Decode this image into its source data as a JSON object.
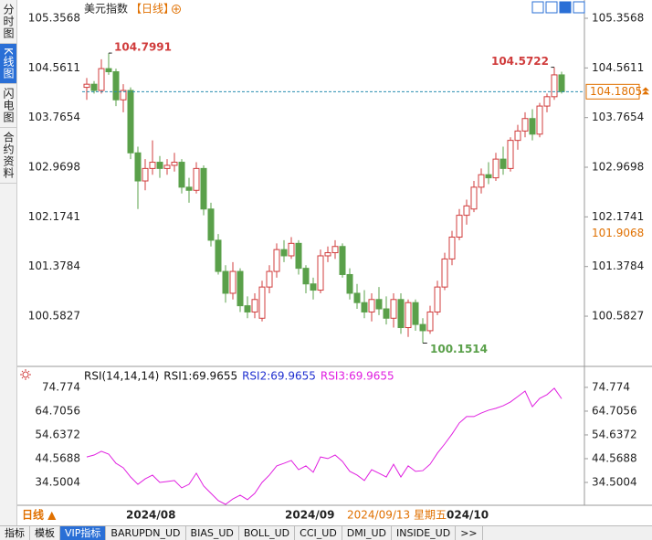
{
  "ui": {
    "sidebar": [
      "分时图",
      "K线图",
      "闪电图",
      "合约资料"
    ],
    "title": "美元指数",
    "period": "【日线】",
    "period_button": "日线 ▲",
    "x_labels": [
      "2024/08",
      "2024/09",
      "2024/09/13 星期五",
      "024/10"
    ],
    "tabs": [
      "指标",
      "模板",
      "VIP指标",
      "BARUPDN_UD",
      "BIAS_UD",
      "BOLL_UD",
      "CCI_UD",
      "DMI_UD",
      "INSIDE_UD",
      ">>"
    ]
  },
  "chart_data": [
    {
      "type": "candlestick",
      "open": [
        104.25,
        104.3,
        104.2,
        104.55,
        104.5,
        104.05,
        104.2,
        103.2,
        102.75,
        102.95,
        103.05,
        102.95,
        103.0,
        103.05,
        102.65,
        102.6,
        102.95,
        102.3,
        101.8,
        101.3,
        100.95,
        101.3,
        100.75,
        100.65,
        100.55,
        101.05,
        101.3,
        101.65,
        101.55,
        101.75,
        101.35,
        101.1,
        101.0,
        101.55,
        101.6,
        101.7,
        101.25,
        100.95,
        100.8,
        100.65,
        100.85,
        100.7,
        100.55,
        100.85,
        100.4,
        100.8,
        100.45,
        100.35,
        100.65,
        101.05,
        101.5,
        101.85,
        102.2,
        102.3,
        102.65,
        102.85,
        102.8,
        103.1,
        102.95,
        103.4,
        103.55,
        103.75,
        103.5,
        103.95,
        104.1,
        104.45
      ],
      "high": [
        104.4,
        104.35,
        104.7,
        104.7991,
        104.55,
        104.3,
        104.25,
        103.3,
        103.1,
        103.4,
        103.15,
        103.1,
        103.2,
        103.1,
        102.8,
        103.05,
        103.0,
        102.4,
        101.9,
        101.4,
        101.45,
        101.35,
        100.9,
        100.95,
        101.15,
        101.4,
        101.75,
        101.8,
        101.85,
        101.8,
        101.4,
        101.2,
        101.65,
        101.7,
        101.8,
        101.75,
        101.35,
        101.1,
        101.0,
        100.95,
        101.05,
        100.9,
        100.95,
        100.95,
        100.85,
        100.85,
        100.55,
        100.75,
        101.15,
        101.6,
        101.95,
        102.3,
        102.45,
        102.75,
        102.95,
        103.05,
        103.2,
        103.3,
        103.45,
        103.65,
        103.85,
        103.9,
        104.0,
        104.15,
        104.5722,
        104.5
      ],
      "low": [
        104.05,
        104.15,
        104.15,
        104.45,
        103.95,
        103.85,
        103.1,
        102.3,
        102.6,
        102.85,
        102.8,
        102.85,
        102.9,
        102.55,
        102.4,
        102.55,
        102.2,
        101.7,
        101.25,
        100.8,
        100.85,
        100.65,
        100.55,
        100.55,
        100.5,
        100.95,
        101.2,
        101.45,
        101.5,
        101.25,
        100.95,
        100.85,
        100.95,
        101.45,
        101.5,
        101.2,
        100.85,
        100.7,
        100.55,
        100.5,
        100.6,
        100.45,
        100.4,
        100.3,
        100.25,
        100.35,
        100.1514,
        100.3,
        100.6,
        101.0,
        101.4,
        101.8,
        102.05,
        102.25,
        102.55,
        102.7,
        102.75,
        102.85,
        102.9,
        103.25,
        103.45,
        103.4,
        103.45,
        103.85,
        104.05,
        104.15
      ],
      "close": [
        104.3,
        104.2,
        104.55,
        104.5,
        104.05,
        104.2,
        103.2,
        102.75,
        102.95,
        103.05,
        102.95,
        103.0,
        103.05,
        102.65,
        102.6,
        102.95,
        102.3,
        101.8,
        101.3,
        100.95,
        101.3,
        100.75,
        100.65,
        100.85,
        101.05,
        101.3,
        101.65,
        101.55,
        101.75,
        101.35,
        101.1,
        101.0,
        101.55,
        101.6,
        101.7,
        101.25,
        100.95,
        100.8,
        100.65,
        100.85,
        100.7,
        100.55,
        100.85,
        100.4,
        100.8,
        100.45,
        100.35,
        100.65,
        101.05,
        101.5,
        101.85,
        102.2,
        102.35,
        102.65,
        102.85,
        102.8,
        103.1,
        102.95,
        103.4,
        103.55,
        103.75,
        103.5,
        103.95,
        104.1,
        104.45,
        104.1805
      ],
      "up_color": "#d03c3c",
      "down_color": "#5aa04a",
      "marker_value": 101.9068,
      "ylim": [
        99.8,
        105.47
      ],
      "yticks": [
        105.3568,
        104.5611,
        103.7654,
        102.9698,
        102.1741,
        101.3784,
        100.5827
      ]
    },
    {
      "type": "line",
      "legend": [
        {
          "label": "RSI(14,14,14)",
          "color": "#111111"
        },
        {
          "label": "RSI1:69.9655",
          "color": "#111111"
        },
        {
          "label": "RSI2:69.9655",
          "color": "#2030d0"
        },
        {
          "label": "RSI3:69.9655",
          "color": "#e020e0"
        }
      ],
      "series": [
        {
          "color": "#e020e0",
          "values": [
            45.3,
            46.1,
            47.7,
            46.5,
            42.6,
            40.7,
            36.8,
            33.7,
            36.0,
            37.6,
            34.5,
            34.9,
            35.3,
            32.2,
            33.7,
            38.4,
            33.0,
            29.9,
            26.8,
            25.2,
            27.5,
            29.1,
            27.2,
            29.9,
            34.5,
            37.6,
            41.5,
            42.6,
            43.8,
            39.9,
            41.5,
            38.8,
            45.3,
            44.6,
            46.1,
            43.4,
            39.2,
            37.6,
            35.3,
            39.9,
            38.4,
            36.8,
            42.2,
            36.8,
            41.5,
            39.2,
            39.5,
            42.2,
            46.9,
            50.8,
            55.0,
            59.7,
            62.4,
            62.4,
            63.9,
            65.1,
            65.9,
            67.0,
            68.6,
            70.9,
            73.2,
            66.6,
            70.1,
            71.7,
            74.4,
            69.9655
          ]
        }
      ],
      "ylim": [
        24,
        82
      ],
      "yticks": [
        74.774,
        64.7056,
        54.6372,
        44.5688,
        34.5004
      ]
    }
  ]
}
